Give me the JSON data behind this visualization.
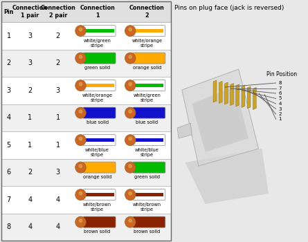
{
  "title": "Pins on plug face (jack is reversed)",
  "headers": [
    "Pin",
    "Connection\n1 pair",
    "Connection\n2 pair",
    "Connection\n1",
    "Connection\n2"
  ],
  "rows": [
    {
      "pin": "1",
      "pair1": "3",
      "pair2": "2",
      "conn1_label": "white/green\nstripe",
      "conn1_color": "#00bb00",
      "conn1_stripe": true,
      "conn2_label": "white/orange\nstripe",
      "conn2_color": "#ffaa00",
      "conn2_stripe": true
    },
    {
      "pin": "2",
      "pair1": "3",
      "pair2": "2",
      "conn1_label": "green solid",
      "conn1_color": "#00bb00",
      "conn1_stripe": false,
      "conn2_label": "orange solid",
      "conn2_color": "#ffaa00",
      "conn2_stripe": false
    },
    {
      "pin": "3",
      "pair1": "2",
      "pair2": "3",
      "conn1_label": "white/orange\nstripe",
      "conn1_color": "#ffaa00",
      "conn1_stripe": true,
      "conn2_label": "white/green\nstripe",
      "conn2_color": "#00bb00",
      "conn2_stripe": true
    },
    {
      "pin": "4",
      "pair1": "1",
      "pair2": "1",
      "conn1_label": "blue solid",
      "conn1_color": "#1111cc",
      "conn1_stripe": false,
      "conn2_label": "blue solid",
      "conn2_color": "#1111cc",
      "conn2_stripe": false
    },
    {
      "pin": "5",
      "pair1": "1",
      "pair2": "1",
      "conn1_label": "white/blue\nstripe",
      "conn1_color": "#1111cc",
      "conn1_stripe": true,
      "conn2_label": "white/blue\nstripe",
      "conn2_color": "#1111cc",
      "conn2_stripe": true
    },
    {
      "pin": "6",
      "pair1": "2",
      "pair2": "3",
      "conn1_label": "orange solid",
      "conn1_color": "#ffaa00",
      "conn1_stripe": false,
      "conn2_label": "green solid",
      "conn2_color": "#00bb00",
      "conn2_stripe": false
    },
    {
      "pin": "7",
      "pair1": "4",
      "pair2": "4",
      "conn1_label": "white/brown\nstripe",
      "conn1_color": "#882200",
      "conn1_stripe": true,
      "conn2_label": "white/brown\nstripe",
      "conn2_color": "#882200",
      "conn2_stripe": true
    },
    {
      "pin": "8",
      "pair1": "4",
      "pair2": "4",
      "conn1_label": "brown solid",
      "conn1_color": "#882200",
      "conn1_stripe": false,
      "conn2_label": "brown solid",
      "conn2_color": "#882200",
      "conn2_stripe": false
    }
  ],
  "bg_color": "#e8e8e8",
  "table_bg": "#f2f2f2",
  "header_bg": "#e0e0e0",
  "grid_color": "#aaaaaa",
  "tip_color": "#cc6622",
  "tip_color2": "#ddaa55"
}
